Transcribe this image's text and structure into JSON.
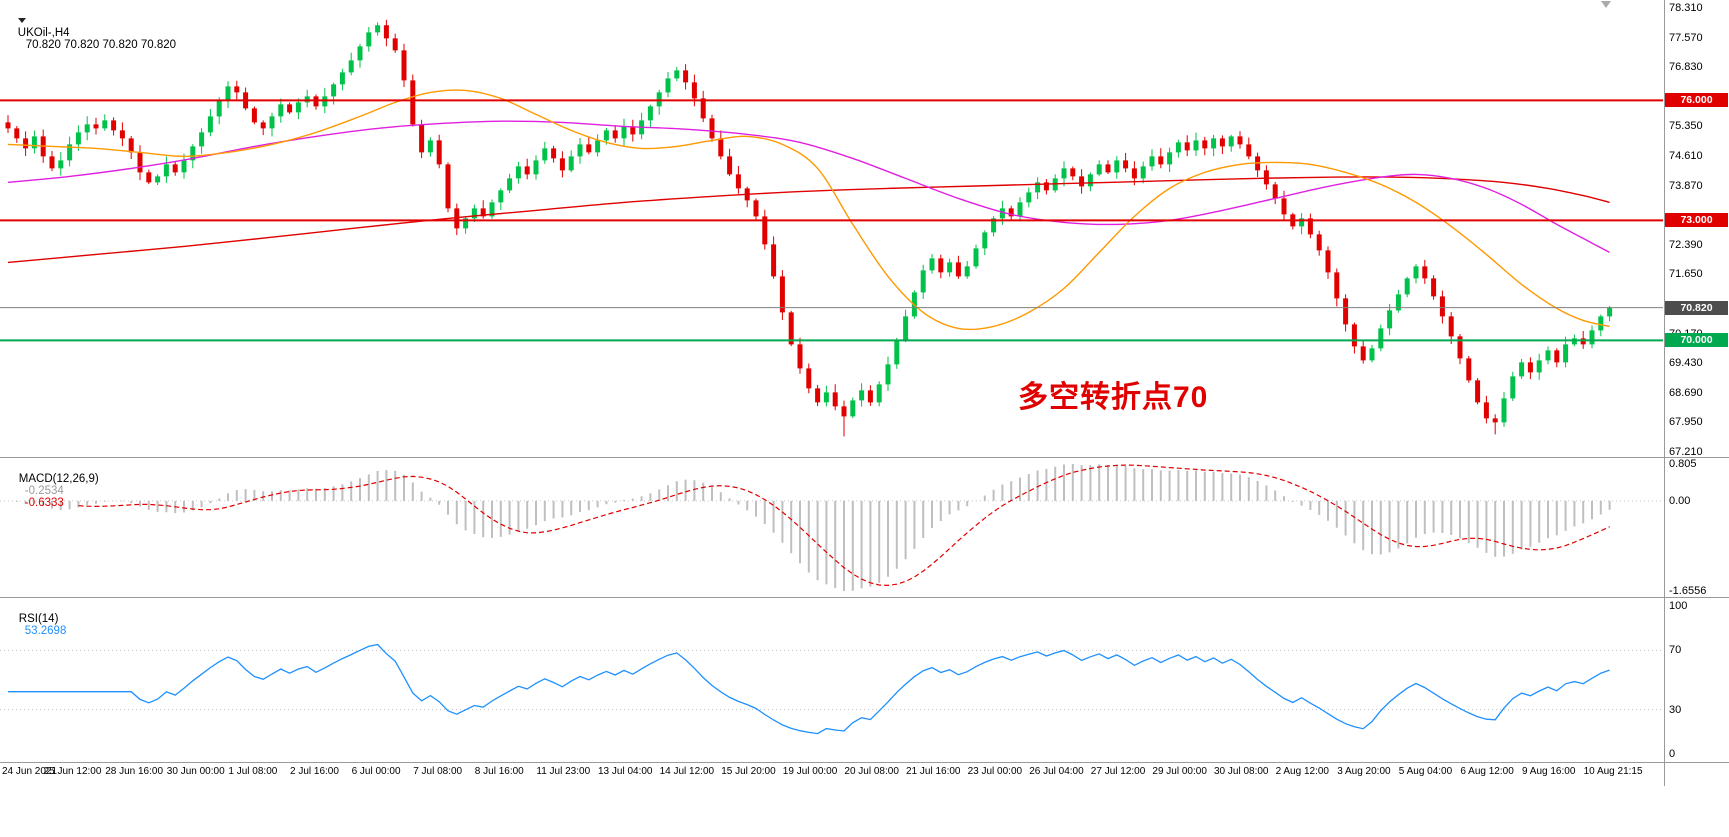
{
  "info_line": {
    "symbol_timeframe": "UKOil-,H4",
    "ohlc": "70.820 70.820 70.820 70.820"
  },
  "annotation": {
    "text": "多空转折点70",
    "color": "#e00000"
  },
  "colors": {
    "up_candle": "#00c24a",
    "down_candle": "#e00000",
    "macd_histogram": "#bfbfbf",
    "macd_signal": "#e00000",
    "rsi_line": "#1e90ff",
    "current_price_line": "#808080",
    "current_price_badge": "#4d4d4d",
    "separator": "#9a9a9a",
    "text": "#000000"
  },
  "chart_data": {
    "type": "candlestick",
    "title": "UKOil- H4 candlestick chart with moving averages, MACD and RSI",
    "bars_per_label": 7,
    "x_labels": [
      "24 Jun 2021",
      "25 Jun 12:00",
      "28 Jun 16:00",
      "30 Jun 00:00",
      "1 Jul 08:00",
      "2 Jul 16:00",
      "6 Jul 00:00",
      "7 Jul 08:00",
      "8 Jul 16:00",
      "11 Jul 23:00",
      "13 Jul 04:00",
      "14 Jul 12:00",
      "15 Jul 20:00",
      "19 Jul 00:00",
      "20 Jul 08:00",
      "21 Jul 16:00",
      "23 Jul 00:00",
      "26 Jul 04:00",
      "27 Jul 12:00",
      "29 Jul 00:00",
      "30 Jul 08:00",
      "2 Aug 12:00",
      "3 Aug 20:00",
      "5 Aug 04:00",
      "6 Aug 12:00",
      "9 Aug 16:00",
      "10 Aug 21:15"
    ],
    "y_ticks": [
      "78.310",
      "77.570",
      "76.830",
      "75.350",
      "74.610",
      "73.870",
      "72.390",
      "71.650",
      "70.170",
      "69.430",
      "68.690",
      "67.950",
      "67.210"
    ],
    "y_range": [
      67.085,
      78.51
    ],
    "first_open": 75.45,
    "closes": [
      75.3,
      75.05,
      74.8,
      75.1,
      74.6,
      74.3,
      74.5,
      74.9,
      75.2,
      75.4,
      75.3,
      75.5,
      75.25,
      75.05,
      74.7,
      74.2,
      73.95,
      74.1,
      74.4,
      74.2,
      74.5,
      74.85,
      75.2,
      75.6,
      76.0,
      76.35,
      76.2,
      75.8,
      75.45,
      75.3,
      75.6,
      75.9,
      75.7,
      75.95,
      76.1,
      75.85,
      76.1,
      76.4,
      76.7,
      77.0,
      77.35,
      77.7,
      77.88,
      77.55,
      77.25,
      76.5,
      75.4,
      74.7,
      75.0,
      74.4,
      73.3,
      72.8,
      73.05,
      73.3,
      73.1,
      73.45,
      73.75,
      74.05,
      74.35,
      74.15,
      74.5,
      74.8,
      74.55,
      74.25,
      74.6,
      74.9,
      74.7,
      75.0,
      75.25,
      75.05,
      75.35,
      75.15,
      75.5,
      75.85,
      76.2,
      76.55,
      76.75,
      76.45,
      76.05,
      75.55,
      75.05,
      74.6,
      74.15,
      73.8,
      73.5,
      73.1,
      72.4,
      71.6,
      70.7,
      69.9,
      69.3,
      68.8,
      68.45,
      68.7,
      68.35,
      68.1,
      68.5,
      68.75,
      68.45,
      68.9,
      69.4,
      70.0,
      70.6,
      71.2,
      71.75,
      72.05,
      71.7,
      71.95,
      71.6,
      71.85,
      72.3,
      72.7,
      73.05,
      73.3,
      73.1,
      73.45,
      73.7,
      73.95,
      73.75,
      74.05,
      74.3,
      74.1,
      73.85,
      74.15,
      74.4,
      74.2,
      74.5,
      74.3,
      74.05,
      74.35,
      74.6,
      74.4,
      74.7,
      74.95,
      74.75,
      75.0,
      74.8,
      75.05,
      74.85,
      75.1,
      74.9,
      74.6,
      74.25,
      73.9,
      73.55,
      73.15,
      72.85,
      73.05,
      72.65,
      72.25,
      71.7,
      71.05,
      70.4,
      69.85,
      69.5,
      69.8,
      70.3,
      70.75,
      71.15,
      71.55,
      71.85,
      71.55,
      71.1,
      70.6,
      70.1,
      69.55,
      69.0,
      68.45,
      68.05,
      67.95,
      68.55,
      69.1,
      69.45,
      69.2,
      69.5,
      69.75,
      69.45,
      69.9,
      70.05,
      69.9,
      70.25,
      70.6,
      70.82
    ],
    "wick_overrides": {
      "42": {
        "high": 77.95
      },
      "95": {
        "low": 67.6
      },
      "169": {
        "low": 67.65
      }
    },
    "levels": [
      {
        "label": "76.000",
        "price": 76.0,
        "color": "#e00000"
      },
      {
        "label": "73.000",
        "price": 73.0,
        "color": "#e00000"
      },
      {
        "label": "70.000",
        "price": 70.0,
        "color": "#00a84f"
      }
    ],
    "current_price": {
      "label": "70.820",
      "price": 70.82
    },
    "moving_averages": [
      {
        "name": "ma-slow-red",
        "color": "#e00000",
        "points": [
          [
            0,
            71.95
          ],
          [
            10,
            72.15
          ],
          [
            20,
            72.35
          ],
          [
            30,
            72.58
          ],
          [
            40,
            72.82
          ],
          [
            50,
            73.05
          ],
          [
            60,
            73.25
          ],
          [
            70,
            73.45
          ],
          [
            80,
            73.6
          ],
          [
            90,
            73.72
          ],
          [
            100,
            73.8
          ],
          [
            110,
            73.86
          ],
          [
            120,
            73.92
          ],
          [
            130,
            73.98
          ],
          [
            140,
            74.04
          ],
          [
            150,
            74.08
          ],
          [
            158,
            74.08
          ],
          [
            164,
            74.04
          ],
          [
            170,
            73.95
          ],
          [
            175,
            73.8
          ],
          [
            179,
            73.62
          ],
          [
            182,
            73.45
          ]
        ]
      },
      {
        "name": "ma-medium-magenta",
        "color": "#e020e0",
        "points": [
          [
            0,
            73.95
          ],
          [
            7,
            74.1
          ],
          [
            14,
            74.3
          ],
          [
            21,
            74.55
          ],
          [
            28,
            74.85
          ],
          [
            35,
            75.1
          ],
          [
            42,
            75.3
          ],
          [
            49,
            75.42
          ],
          [
            56,
            75.48
          ],
          [
            63,
            75.45
          ],
          [
            70,
            75.35
          ],
          [
            77,
            75.28
          ],
          [
            84,
            75.15
          ],
          [
            90,
            74.95
          ],
          [
            96,
            74.55
          ],
          [
            102,
            74.05
          ],
          [
            108,
            73.55
          ],
          [
            114,
            73.15
          ],
          [
            120,
            72.95
          ],
          [
            126,
            72.9
          ],
          [
            132,
            73.0
          ],
          [
            138,
            73.25
          ],
          [
            144,
            73.55
          ],
          [
            150,
            73.85
          ],
          [
            156,
            74.08
          ],
          [
            160,
            74.15
          ],
          [
            164,
            74.05
          ],
          [
            168,
            73.8
          ],
          [
            172,
            73.4
          ],
          [
            176,
            72.9
          ],
          [
            179,
            72.55
          ],
          [
            182,
            72.2
          ]
        ]
      },
      {
        "name": "ma-fast-orange",
        "color": "#ff9900",
        "points": [
          [
            0,
            74.9
          ],
          [
            5,
            74.85
          ],
          [
            10,
            74.8
          ],
          [
            15,
            74.7
          ],
          [
            20,
            74.6
          ],
          [
            25,
            74.7
          ],
          [
            30,
            74.9
          ],
          [
            35,
            75.2
          ],
          [
            40,
            75.6
          ],
          [
            44,
            75.95
          ],
          [
            48,
            76.2
          ],
          [
            52,
            76.25
          ],
          [
            56,
            76.05
          ],
          [
            60,
            75.65
          ],
          [
            64,
            75.25
          ],
          [
            68,
            74.95
          ],
          [
            72,
            74.8
          ],
          [
            76,
            74.85
          ],
          [
            80,
            75.0
          ],
          [
            84,
            75.1
          ],
          [
            88,
            74.9
          ],
          [
            92,
            74.3
          ],
          [
            96,
            72.9
          ],
          [
            100,
            71.6
          ],
          [
            104,
            70.7
          ],
          [
            108,
            70.3
          ],
          [
            112,
            70.35
          ],
          [
            116,
            70.7
          ],
          [
            120,
            71.3
          ],
          [
            124,
            72.2
          ],
          [
            128,
            73.1
          ],
          [
            132,
            73.8
          ],
          [
            136,
            74.2
          ],
          [
            140,
            74.4
          ],
          [
            144,
            74.45
          ],
          [
            148,
            74.4
          ],
          [
            152,
            74.2
          ],
          [
            156,
            73.9
          ],
          [
            160,
            73.45
          ],
          [
            164,
            72.85
          ],
          [
            168,
            72.15
          ],
          [
            172,
            71.4
          ],
          [
            176,
            70.8
          ],
          [
            179,
            70.5
          ],
          [
            182,
            70.35
          ]
        ]
      }
    ],
    "indicators": {
      "macd": {
        "label": "MACD(12,26,9)",
        "value_main": "-0.2534",
        "value_signal": "-0.6333",
        "fast": 12,
        "slow": 26,
        "signal": 9,
        "ticks": [
          "0.805",
          "0.00",
          "-1.6556"
        ]
      },
      "rsi": {
        "label": "RSI(14)",
        "value": "53.2698",
        "period": 14,
        "ticks": [
          "100",
          "70",
          "30",
          "0"
        ],
        "level_lines": [
          70,
          30
        ]
      }
    }
  }
}
